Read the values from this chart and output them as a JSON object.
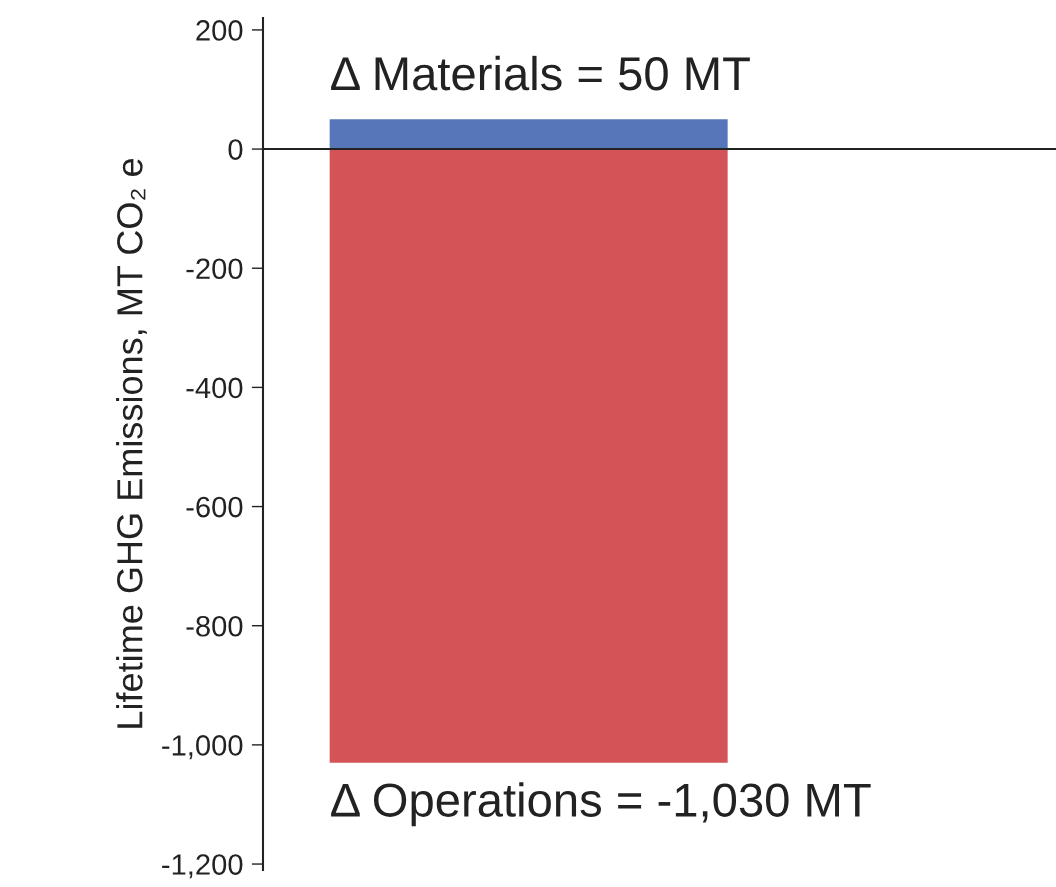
{
  "chart_data": {
    "type": "bar",
    "ylabel": "Lifetime GHG Emissions, MT CO₂ e",
    "categories": [
      null
    ],
    "series": [
      {
        "color": "#5676b9",
        "values": [
          50
        ],
        "value_labels": [
          "Δ Materials = 50 MT"
        ]
      },
      {
        "color": "#d45356",
        "values": [
          -1030
        ],
        "value_labels": [
          "Δ Operations = -1,030 MT"
        ]
      }
    ],
    "stacked": true,
    "ylim": [
      -1210,
      220
    ],
    "yticks": [
      200,
      0,
      -200,
      -400,
      -600,
      -800,
      {
        "value": -1000,
        "label": "-1,000"
      },
      {
        "value": -1200,
        "label": "-1,200"
      }
    ],
    "legend": false
  }
}
